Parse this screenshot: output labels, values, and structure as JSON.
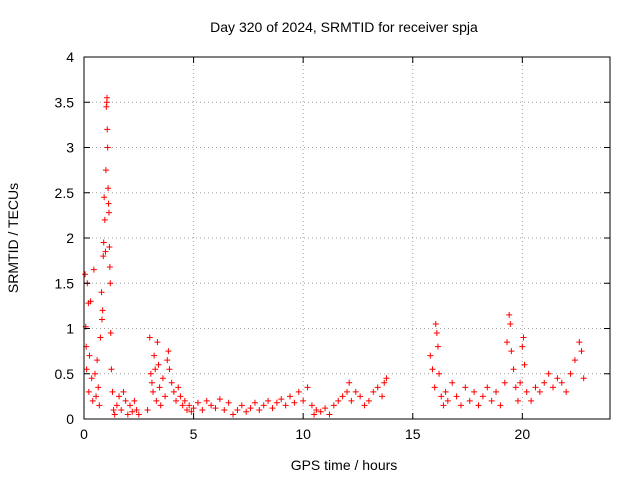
{
  "chart_data": {
    "type": "scatter",
    "title": "Day 320 of 2024, SRMTID for receiver spja",
    "xlabel": "GPS time / hours",
    "ylabel": "SRMTID / TECUs",
    "xlim": [
      0,
      24
    ],
    "ylim": [
      0,
      4
    ],
    "grid": true,
    "marker": "+",
    "color": "#ff0000",
    "x_ticks": [
      0,
      5,
      10,
      15,
      20
    ],
    "x_tick_labels": [
      "0",
      "5",
      "10",
      "15",
      "20"
    ],
    "y_ticks": [
      0,
      0.5,
      1,
      1.5,
      2,
      2.5,
      3,
      3.5,
      4
    ],
    "y_tick_labels": [
      "0",
      "0.5",
      "1",
      "1.5",
      "2",
      "2.5",
      "3",
      "3.5",
      "4"
    ],
    "series": [
      {
        "name": "SRMTID",
        "points": [
          [
            0.05,
            1.6
          ],
          [
            0.08,
            1.02
          ],
          [
            0.1,
            0.8
          ],
          [
            0.12,
            0.55
          ],
          [
            0.15,
            1.5
          ],
          [
            0.2,
            1.28
          ],
          [
            0.22,
            0.3
          ],
          [
            0.25,
            0.7
          ],
          [
            0.3,
            1.3
          ],
          [
            0.35,
            0.45
          ],
          [
            0.4,
            0.2
          ],
          [
            0.45,
            1.65
          ],
          [
            0.5,
            0.5
          ],
          [
            0.55,
            0.25
          ],
          [
            0.6,
            0.65
          ],
          [
            0.65,
            0.35
          ],
          [
            0.7,
            0.15
          ],
          [
            0.75,
            0.9
          ],
          [
            0.8,
            1.4
          ],
          [
            0.82,
            1.1
          ],
          [
            0.85,
            1.2
          ],
          [
            0.88,
            1.8
          ],
          [
            0.9,
            1.95
          ],
          [
            0.92,
            2.45
          ],
          [
            0.95,
            2.2
          ],
          [
            0.98,
            1.85
          ],
          [
            1.0,
            2.75
          ],
          [
            1.02,
            3.45
          ],
          [
            1.04,
            3.5
          ],
          [
            1.05,
            3.55
          ],
          [
            1.06,
            3.2
          ],
          [
            1.08,
            3.0
          ],
          [
            1.1,
            2.55
          ],
          [
            1.12,
            2.38
          ],
          [
            1.14,
            2.28
          ],
          [
            1.16,
            1.9
          ],
          [
            1.18,
            1.68
          ],
          [
            1.2,
            1.5
          ],
          [
            1.22,
            0.95
          ],
          [
            1.25,
            0.55
          ],
          [
            1.3,
            0.3
          ],
          [
            1.35,
            0.1
          ],
          [
            1.4,
            0.05
          ],
          [
            1.5,
            0.15
          ],
          [
            1.6,
            0.25
          ],
          [
            1.7,
            0.1
          ],
          [
            1.8,
            0.3
          ],
          [
            1.9,
            0.2
          ],
          [
            2.0,
            0.05
          ],
          [
            2.1,
            0.15
          ],
          [
            2.2,
            0.08
          ],
          [
            2.3,
            0.2
          ],
          [
            2.4,
            0.1
          ],
          [
            2.5,
            0.05
          ],
          [
            2.9,
            0.1
          ],
          [
            3.0,
            0.9
          ],
          [
            3.05,
            0.5
          ],
          [
            3.1,
            0.4
          ],
          [
            3.15,
            0.3
          ],
          [
            3.2,
            0.7
          ],
          [
            3.25,
            0.55
          ],
          [
            3.3,
            0.2
          ],
          [
            3.35,
            0.85
          ],
          [
            3.4,
            0.6
          ],
          [
            3.45,
            0.35
          ],
          [
            3.5,
            0.15
          ],
          [
            3.6,
            0.45
          ],
          [
            3.7,
            0.25
          ],
          [
            3.8,
            0.65
          ],
          [
            3.85,
            0.75
          ],
          [
            3.9,
            0.55
          ],
          [
            4.0,
            0.4
          ],
          [
            4.1,
            0.3
          ],
          [
            4.2,
            0.2
          ],
          [
            4.3,
            0.35
          ],
          [
            4.4,
            0.25
          ],
          [
            4.5,
            0.15
          ],
          [
            4.6,
            0.2
          ],
          [
            4.7,
            0.1
          ],
          [
            4.8,
            0.15
          ],
          [
            4.9,
            0.08
          ],
          [
            5.0,
            0.12
          ],
          [
            5.2,
            0.18
          ],
          [
            5.4,
            0.1
          ],
          [
            5.6,
            0.2
          ],
          [
            5.8,
            0.15
          ],
          [
            6.0,
            0.12
          ],
          [
            6.2,
            0.22
          ],
          [
            6.4,
            0.1
          ],
          [
            6.6,
            0.18
          ],
          [
            6.8,
            0.05
          ],
          [
            7.0,
            0.1
          ],
          [
            7.2,
            0.15
          ],
          [
            7.4,
            0.08
          ],
          [
            7.6,
            0.12
          ],
          [
            7.8,
            0.18
          ],
          [
            8.0,
            0.1
          ],
          [
            8.2,
            0.15
          ],
          [
            8.4,
            0.2
          ],
          [
            8.6,
            0.12
          ],
          [
            8.8,
            0.18
          ],
          [
            9.0,
            0.22
          ],
          [
            9.2,
            0.15
          ],
          [
            9.4,
            0.25
          ],
          [
            9.6,
            0.18
          ],
          [
            9.8,
            0.3
          ],
          [
            10.0,
            0.2
          ],
          [
            10.2,
            0.35
          ],
          [
            10.4,
            0.15
          ],
          [
            10.5,
            0.05
          ],
          [
            10.6,
            0.1
          ],
          [
            10.8,
            0.08
          ],
          [
            11.0,
            0.12
          ],
          [
            11.2,
            0.05
          ],
          [
            11.4,
            0.15
          ],
          [
            11.6,
            0.2
          ],
          [
            11.8,
            0.25
          ],
          [
            12.0,
            0.3
          ],
          [
            12.1,
            0.4
          ],
          [
            12.2,
            0.2
          ],
          [
            12.4,
            0.3
          ],
          [
            12.6,
            0.25
          ],
          [
            12.8,
            0.15
          ],
          [
            13.0,
            0.2
          ],
          [
            13.2,
            0.3
          ],
          [
            13.4,
            0.35
          ],
          [
            13.6,
            0.25
          ],
          [
            13.7,
            0.4
          ],
          [
            13.8,
            0.45
          ],
          [
            15.8,
            0.7
          ],
          [
            15.9,
            0.55
          ],
          [
            16.0,
            0.35
          ],
          [
            16.05,
            1.05
          ],
          [
            16.1,
            0.95
          ],
          [
            16.15,
            0.8
          ],
          [
            16.2,
            0.5
          ],
          [
            16.3,
            0.25
          ],
          [
            16.4,
            0.15
          ],
          [
            16.5,
            0.3
          ],
          [
            16.6,
            0.2
          ],
          [
            16.8,
            0.4
          ],
          [
            17.0,
            0.25
          ],
          [
            17.2,
            0.15
          ],
          [
            17.4,
            0.35
          ],
          [
            17.6,
            0.2
          ],
          [
            17.8,
            0.3
          ],
          [
            18.0,
            0.15
          ],
          [
            18.2,
            0.25
          ],
          [
            18.4,
            0.35
          ],
          [
            18.6,
            0.2
          ],
          [
            18.8,
            0.3
          ],
          [
            19.0,
            0.15
          ],
          [
            19.2,
            0.4
          ],
          [
            19.3,
            0.85
          ],
          [
            19.4,
            1.15
          ],
          [
            19.45,
            1.05
          ],
          [
            19.5,
            0.75
          ],
          [
            19.6,
            0.55
          ],
          [
            19.7,
            0.35
          ],
          [
            19.8,
            0.2
          ],
          [
            19.9,
            0.4
          ],
          [
            20.0,
            0.8
          ],
          [
            20.05,
            0.9
          ],
          [
            20.1,
            0.6
          ],
          [
            20.2,
            0.3
          ],
          [
            20.4,
            0.2
          ],
          [
            20.6,
            0.35
          ],
          [
            20.8,
            0.3
          ],
          [
            21.0,
            0.4
          ],
          [
            21.2,
            0.5
          ],
          [
            21.4,
            0.35
          ],
          [
            21.6,
            0.45
          ],
          [
            21.8,
            0.4
          ],
          [
            22.0,
            0.3
          ],
          [
            22.2,
            0.5
          ],
          [
            22.4,
            0.65
          ],
          [
            22.6,
            0.85
          ],
          [
            22.7,
            0.75
          ],
          [
            22.8,
            0.45
          ]
        ]
      }
    ]
  }
}
